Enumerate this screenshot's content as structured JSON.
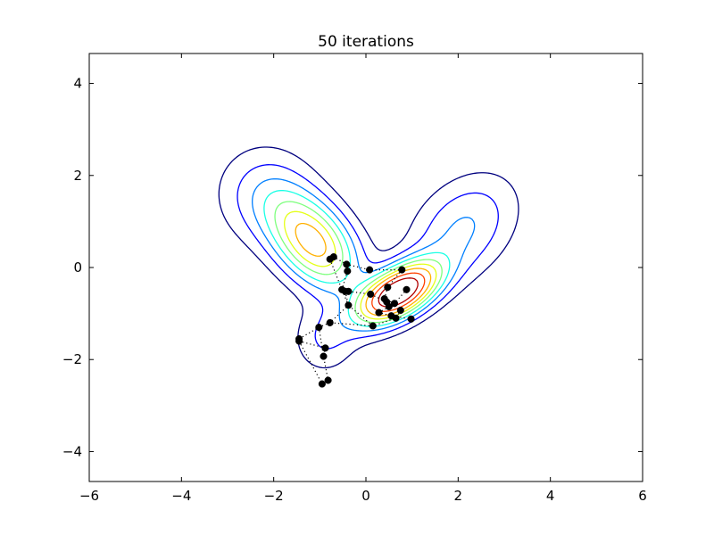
{
  "chart_data": {
    "type": "scatter",
    "title": "50 iterations",
    "xlabel": "",
    "ylabel": "",
    "xlim": [
      -6,
      6
    ],
    "ylim": [
      -4.65,
      4.65
    ],
    "grid": false,
    "xticks": [
      -6,
      -4,
      -2,
      0,
      2,
      4,
      6
    ],
    "xtick_labels": [
      "−6",
      "−4",
      "−2",
      "0",
      "2",
      "4",
      "6"
    ],
    "yticks": [
      -4,
      -2,
      0,
      2,
      4
    ],
    "ytick_labels": [
      "−4",
      "−2",
      "0",
      "2",
      "4"
    ],
    "contour_colors": [
      "#00007f",
      "#0000ff",
      "#007fff",
      "#19ffe5",
      "#7fff7f",
      "#e5ff19",
      "#ffb000",
      "#ff4000",
      "#b00000"
    ],
    "point_color": "#000000",
    "path_style": "dotted",
    "points": [
      {
        "x": -0.78,
        "y": 0.18
      },
      {
        "x": -0.7,
        "y": 0.23
      },
      {
        "x": -0.42,
        "y": 0.07
      },
      {
        "x": -0.4,
        "y": -0.08
      },
      {
        "x": 0.08,
        "y": -0.05
      },
      {
        "x": 0.78,
        "y": -0.05
      },
      {
        "x": 0.47,
        "y": -0.43
      },
      {
        "x": 0.88,
        "y": -0.48
      },
      {
        "x": 0.1,
        "y": -0.58
      },
      {
        "x": 0.4,
        "y": -0.68
      },
      {
        "x": 0.45,
        "y": -0.75
      },
      {
        "x": 0.62,
        "y": -0.78
      },
      {
        "x": 0.5,
        "y": -0.85
      },
      {
        "x": 0.28,
        "y": -0.98
      },
      {
        "x": 0.75,
        "y": -0.93
      },
      {
        "x": 0.55,
        "y": -1.05
      },
      {
        "x": 0.65,
        "y": -1.1
      },
      {
        "x": 0.98,
        "y": -1.12
      },
      {
        "x": 0.15,
        "y": -1.27
      },
      {
        "x": -0.78,
        "y": -1.2
      },
      {
        "x": -1.02,
        "y": -1.3
      },
      {
        "x": -0.38,
        "y": -0.82
      },
      {
        "x": -0.52,
        "y": -0.48
      },
      {
        "x": -0.45,
        "y": -0.52
      },
      {
        "x": -0.38,
        "y": -0.52
      },
      {
        "x": -1.45,
        "y": -1.55
      },
      {
        "x": -1.45,
        "y": -1.6
      },
      {
        "x": -0.88,
        "y": -1.75
      },
      {
        "x": -0.92,
        "y": -1.93
      },
      {
        "x": -0.82,
        "y": -2.45
      },
      {
        "x": -0.95,
        "y": -2.53
      }
    ],
    "paths": [
      [
        [
          -0.78,
          0.18
        ],
        [
          -0.7,
          0.23
        ],
        [
          -0.42,
          0.07
        ],
        [
          0.08,
          -0.05
        ],
        [
          0.78,
          -0.05
        ],
        [
          0.47,
          -0.43
        ],
        [
          0.4,
          -0.68
        ],
        [
          0.62,
          -0.78
        ],
        [
          0.88,
          -0.48
        ]
      ],
      [
        [
          -0.4,
          -0.08
        ],
        [
          -0.52,
          -0.48
        ],
        [
          -0.38,
          -0.52
        ],
        [
          0.1,
          -0.58
        ],
        [
          0.45,
          -0.75
        ],
        [
          0.5,
          -0.85
        ],
        [
          0.28,
          -0.98
        ],
        [
          0.55,
          -1.05
        ],
        [
          0.98,
          -1.12
        ]
      ],
      [
        [
          -0.45,
          -0.52
        ],
        [
          -0.38,
          -0.82
        ],
        [
          0.15,
          -1.27
        ],
        [
          0.65,
          -1.1
        ],
        [
          0.75,
          -0.93
        ]
      ],
      [
        [
          -0.78,
          0.18
        ],
        [
          -0.52,
          -0.48
        ],
        [
          -0.38,
          -0.82
        ],
        [
          -0.78,
          -1.2
        ],
        [
          -1.02,
          -1.3
        ],
        [
          -1.45,
          -1.55
        ]
      ],
      [
        [
          -1.45,
          -1.6
        ],
        [
          -0.88,
          -1.75
        ],
        [
          -0.92,
          -1.93
        ],
        [
          -0.82,
          -2.45
        ]
      ],
      [
        [
          -1.45,
          -1.6
        ],
        [
          -0.95,
          -2.53
        ]
      ],
      [
        [
          -1.02,
          -1.3
        ],
        [
          -0.92,
          -1.93
        ]
      ],
      [
        [
          0.15,
          -1.27
        ],
        [
          -0.78,
          -1.2
        ]
      ]
    ]
  }
}
